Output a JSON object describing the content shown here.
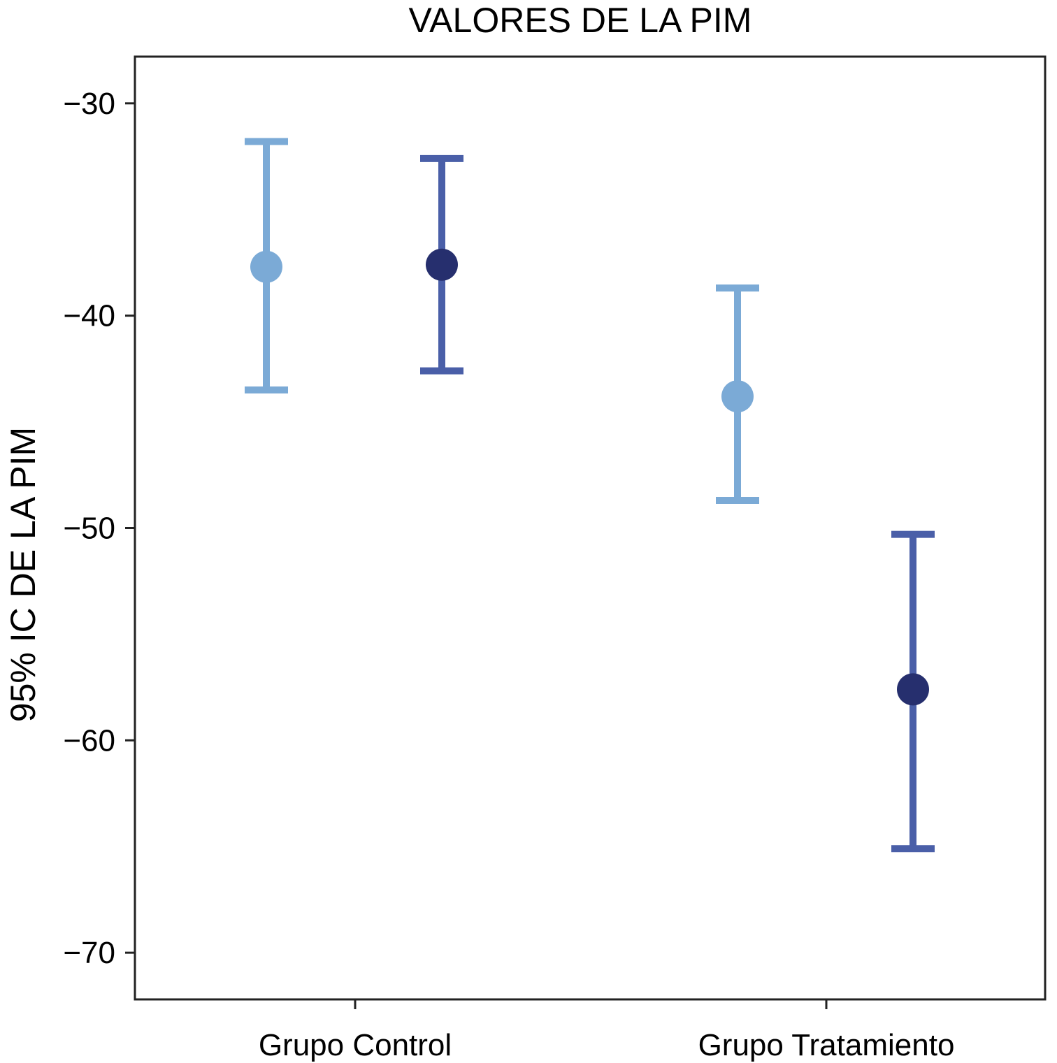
{
  "chart_data": {
    "type": "scatter",
    "subtype": "error-bar",
    "title": "VALORES DE LA PIM",
    "xlabel": "",
    "ylabel": "95% IC DE LA PIM",
    "categories": [
      "Grupo Control",
      "Grupo Tratamiento"
    ],
    "ylim": [
      -72.2,
      -27.8
    ],
    "yticks": [
      -30,
      -40,
      -50,
      -60,
      -70
    ],
    "ytick_labels": [
      "−30",
      "−40",
      "−50",
      "−60",
      "−70"
    ],
    "grid": false,
    "legend": "none",
    "series": [
      {
        "color": "#7BAAD6",
        "points": [
          {
            "category": "Grupo Control",
            "mean": -37.7,
            "lower": -43.5,
            "upper": -31.8
          },
          {
            "category": "Grupo Tratamiento",
            "mean": -43.8,
            "lower": -48.7,
            "upper": -38.7
          }
        ]
      },
      {
        "color": "#4A5FA8",
        "marker_color": "#262F6E",
        "points": [
          {
            "category": "Grupo Control",
            "mean": -37.6,
            "lower": -42.6,
            "upper": -32.6
          },
          {
            "category": "Grupo Tratamiento",
            "mean": -57.6,
            "lower": -65.1,
            "upper": -50.3
          }
        ]
      }
    ]
  }
}
